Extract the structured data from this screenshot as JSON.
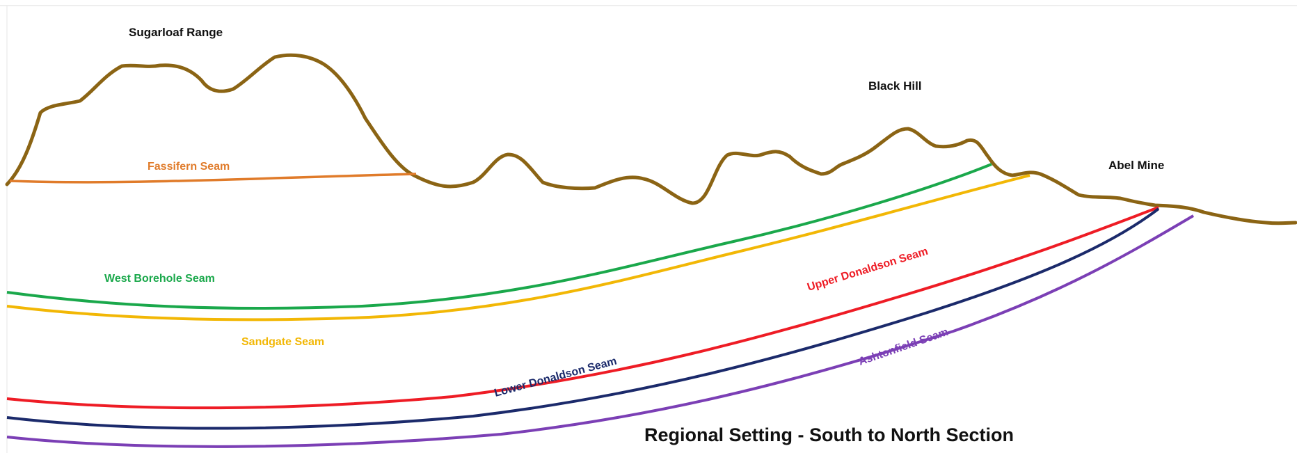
{
  "labels": {
    "sugarloaf": "Sugarloaf Range",
    "black_hill": "Black Hill",
    "abel_mine": "Abel Mine",
    "caption": "Regional Setting - South to North Section"
  },
  "seams": [
    {
      "name": "Fassifern Seam",
      "color": "#e07b2a"
    },
    {
      "name": "West Borehole Seam",
      "color": "#1aa84b"
    },
    {
      "name": "Sandgate Seam",
      "color": "#f2b705"
    },
    {
      "name": "Upper Donaldson Seam",
      "color": "#ee1c25"
    },
    {
      "name": "Lower Donaldson Seam",
      "color": "#1b2a6b"
    },
    {
      "name": "Ashtonfield Seam",
      "color": "#7b3fb5"
    }
  ],
  "colors": {
    "terrain": "#8b6414",
    "landmark_text": "#111111"
  }
}
